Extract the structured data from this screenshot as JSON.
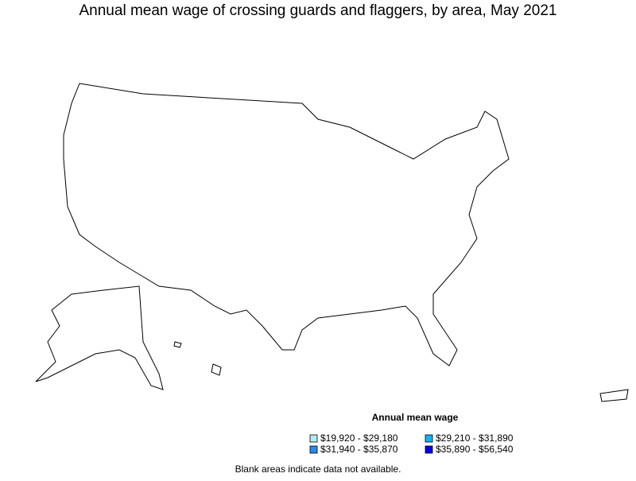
{
  "title": "Annual mean wage of crossing guards and flaggers, by area, May 2021",
  "legend": {
    "title": "Annual mean wage",
    "items": [
      {
        "label": "$19,920 - $29,180",
        "color": "#b3eeee"
      },
      {
        "label": "$29,210 - $31,890",
        "color": "#10b4f0"
      },
      {
        "label": "$31,940 - $35,870",
        "color": "#2a88f0"
      },
      {
        "label": "$35,890 - $56,540",
        "color": "#0000ee"
      }
    ]
  },
  "note": "Blank areas indicate data not available."
}
